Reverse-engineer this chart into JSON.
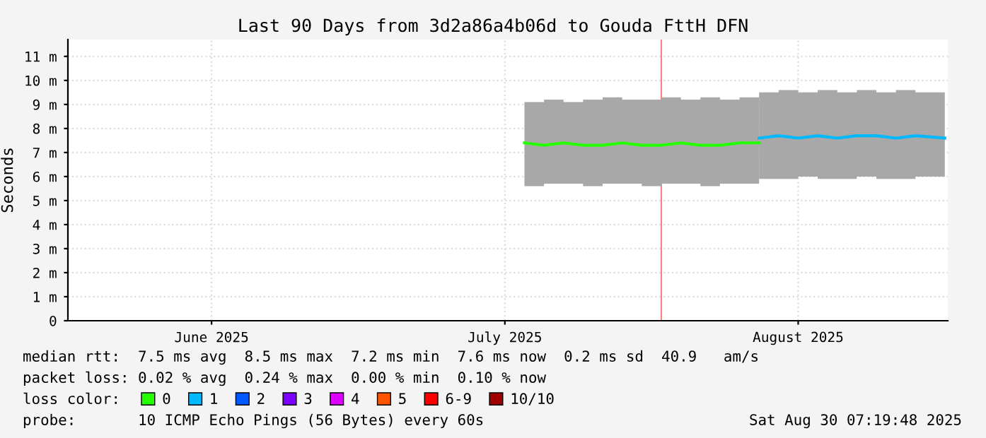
{
  "chart_data": {
    "type": "line",
    "title": "Last 90 Days from 3d2a86a4b06d to Gouda FttH DFN",
    "ylabel": "Seconds",
    "legend_title": "loss color:",
    "xlim": [
      "2025-06-01T07:19",
      "2025-08-30T07:19"
    ],
    "xticks": [
      {
        "value": "2025-06-16",
        "label": "June 2025"
      },
      {
        "value": "2025-07-16",
        "label": "July 2025"
      },
      {
        "value": "2025-08-15",
        "label": "August 2025"
      }
    ],
    "ylim": [
      0,
      11.7
    ],
    "yticks": [
      0,
      {
        "value": 1,
        "label": "1 m"
      },
      {
        "value": 2,
        "label": "2 m"
      },
      {
        "value": 3,
        "label": "3 m"
      },
      {
        "value": 4,
        "label": "4 m"
      },
      {
        "value": 5,
        "label": "5 m"
      },
      {
        "value": 6,
        "label": "6 m"
      },
      {
        "value": 7,
        "label": "7 m"
      },
      {
        "value": 8,
        "label": "8 m"
      },
      {
        "value": 9,
        "label": "9 m"
      },
      {
        "value": 10,
        "label": "10 m"
      },
      {
        "value": 11,
        "label": "11 m"
      }
    ],
    "grid": true,
    "legend": "bottom",
    "marker": "none",
    "line_style": "solid",
    "ref_lines": [
      {
        "axis": "x",
        "value": "2025-08-01",
        "color": "#ff8080"
      }
    ],
    "series": [
      {
        "name": "0",
        "color": "#26ff00",
        "x": [
          "2025-07-18",
          "2025-07-20",
          "2025-07-22",
          "2025-07-24",
          "2025-07-26",
          "2025-07-28",
          "2025-07-30",
          "2025-08-01",
          "2025-08-03",
          "2025-08-05",
          "2025-08-07",
          "2025-08-09",
          "2025-08-11"
        ],
        "values": [
          7.4,
          7.3,
          7.4,
          7.3,
          7.3,
          7.4,
          7.3,
          7.3,
          7.4,
          7.3,
          7.3,
          7.4,
          7.4
        ],
        "lower": [
          5.6,
          5.7,
          5.7,
          5.6,
          5.7,
          5.7,
          5.6,
          5.7,
          5.7,
          5.6,
          5.7,
          5.7,
          5.7
        ],
        "upper": [
          9.1,
          9.2,
          9.1,
          9.2,
          9.3,
          9.2,
          9.2,
          9.3,
          9.2,
          9.3,
          9.2,
          9.3,
          9.3
        ]
      },
      {
        "name": "1",
        "color": "#00b8ff",
        "x": [
          "2025-08-11",
          "2025-08-13",
          "2025-08-15",
          "2025-08-17",
          "2025-08-19",
          "2025-08-21",
          "2025-08-23",
          "2025-08-25",
          "2025-08-27",
          "2025-08-30"
        ],
        "values": [
          7.6,
          7.7,
          7.6,
          7.7,
          7.6,
          7.7,
          7.7,
          7.6,
          7.7,
          7.6
        ],
        "lower": [
          5.9,
          5.9,
          6.0,
          5.9,
          5.9,
          6.0,
          5.9,
          5.9,
          6.0,
          5.9
        ],
        "upper": [
          9.5,
          9.6,
          9.5,
          9.6,
          9.5,
          9.6,
          9.5,
          9.6,
          9.5,
          9.5
        ]
      },
      {
        "name": "2",
        "color": "#0059ff"
      },
      {
        "name": "3",
        "color": "#7e00ff"
      },
      {
        "name": "4",
        "color": "#dd00ff"
      },
      {
        "name": "5",
        "color": "#ff5500"
      },
      {
        "name": "6-9",
        "color": "#ff0000"
      },
      {
        "name": "10/10",
        "color": "#a00000"
      }
    ],
    "annotations": [
      "median rtt:  7.5 ms avg  8.5 ms max  7.2 ms min  7.6 ms now  0.2 ms sd  40.9   am/s",
      "packet loss: 0.02 % avg  0.24 % max  0.00 % min  0.10 % now",
      "probe:       10 ICMP Echo Pings (56 Bytes) every 60s",
      "Sat Aug 30 07:19:48 2025"
    ]
  }
}
